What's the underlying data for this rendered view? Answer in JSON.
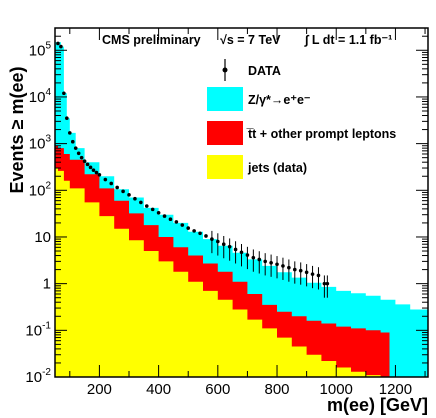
{
  "chart_data": {
    "type": "area",
    "xlabel": "m(ee) [GeV]",
    "ylabel": "Events ≥ m(ee)",
    "xlim": [
      50,
      1310
    ],
    "ylim": [
      0.01,
      300000
    ],
    "y_scale": "log",
    "x_ticks": [
      "200",
      "400",
      "600",
      "800",
      "1000",
      "1200"
    ],
    "y_ticks": [
      {
        "value": 0.01,
        "base": "10",
        "exp": "-2"
      },
      {
        "value": 0.1,
        "base": "10",
        "exp": "-1"
      },
      {
        "value": 1,
        "base": "1",
        "exp": ""
      },
      {
        "value": 10,
        "base": "10",
        "exp": ""
      },
      {
        "value": 100,
        "base": "10",
        "exp": "2"
      },
      {
        "value": 1000,
        "base": "10",
        "exp": "3"
      },
      {
        "value": 10000,
        "base": "10",
        "exp": "4"
      },
      {
        "value": 100000,
        "base": "10",
        "exp": "5"
      }
    ],
    "annotations": {
      "experiment": "CMS preliminary",
      "energy": "√s = 7 TeV",
      "lumi": "∫ L dt = 1.1 fb⁻¹"
    },
    "series": [
      {
        "name": "DATA",
        "style": "points",
        "color": "#000000",
        "x": [
          60,
          70,
          80,
          90,
          100,
          110,
          120,
          130,
          140,
          150,
          160,
          170,
          180,
          190,
          200,
          220,
          240,
          260,
          280,
          300,
          320,
          340,
          360,
          380,
          400,
          420,
          440,
          460,
          480,
          500,
          520,
          540,
          560,
          580,
          600,
          620,
          640,
          660,
          680,
          700,
          720,
          740,
          760,
          780,
          800,
          820,
          840,
          860,
          880,
          900,
          920,
          940,
          960,
          970
        ],
        "y": [
          140000,
          120000,
          12000,
          3500,
          1700,
          1100,
          800,
          620,
          500,
          420,
          360,
          310,
          270,
          240,
          215,
          170,
          140,
          115,
          95,
          80,
          66,
          55,
          46,
          39,
          33,
          28,
          24,
          21,
          18,
          15.5,
          13.5,
          12,
          10.5,
          9,
          8,
          7,
          6.2,
          5.4,
          4.7,
          4.1,
          3.6,
          3.3,
          3.0,
          2.8,
          2.6,
          2.4,
          2.2,
          2.0,
          1.9,
          1.75,
          1.6,
          1.5,
          1.0,
          1.0
        ],
        "y_err_rel": 0.5,
        "err_from_x": 580
      },
      {
        "name": "Z/γ*→e⁺e⁻",
        "style": "stacked-area",
        "color": "#00ffff",
        "x": [
          50,
          60,
          66,
          70,
          80,
          90,
          100,
          120,
          150,
          200,
          250,
          300,
          350,
          400,
          450,
          500,
          550,
          600,
          650,
          700,
          750,
          800,
          850,
          900,
          950,
          1000,
          1050,
          1100,
          1150,
          1200,
          1250,
          1310
        ],
        "y": [
          150000,
          150000,
          150000,
          120000,
          12000,
          3500,
          1700,
          800,
          400,
          200,
          105,
          70,
          42,
          30,
          20,
          13,
          9,
          6.5,
          4.6,
          3.3,
          2.4,
          1.75,
          1.35,
          1.05,
          0.85,
          0.7,
          0.62,
          0.55,
          0.45,
          0.36,
          0.28,
          0.22
        ]
      },
      {
        "name": "t̅t + other prompt leptons",
        "style": "stacked-area",
        "color": "#ff0000",
        "x": [
          50,
          60,
          80,
          100,
          150,
          200,
          250,
          300,
          350,
          400,
          450,
          500,
          550,
          600,
          650,
          700,
          750,
          800,
          850,
          900,
          950,
          1000,
          1050,
          1100,
          1150,
          1180
        ],
        "y": [
          900,
          800,
          600,
          450,
          220,
          110,
          60,
          32,
          18,
          10,
          6,
          4,
          2.7,
          1.8,
          1.1,
          0.6,
          0.35,
          0.25,
          0.2,
          0.16,
          0.14,
          0.12,
          0.11,
          0.1,
          0.09,
          0.085
        ]
      },
      {
        "name": "jets (data)",
        "style": "stacked-area",
        "color": "#ffff00",
        "x": [
          50,
          60,
          80,
          100,
          150,
          200,
          250,
          300,
          350,
          400,
          450,
          500,
          550,
          600,
          650,
          700,
          750,
          800,
          850,
          900,
          950,
          1000,
          1050,
          1100,
          1150,
          1180
        ],
        "y": [
          300,
          260,
          160,
          110,
          55,
          28,
          15,
          8.5,
          5,
          3,
          1.8,
          1.1,
          0.7,
          0.45,
          0.28,
          0.17,
          0.11,
          0.07,
          0.045,
          0.03,
          0.022,
          0.016,
          0.013,
          0.011,
          0.01,
          0.01
        ]
      }
    ],
    "legend": {
      "placement": "top-right",
      "entries": [
        {
          "label": "DATA",
          "swatch": "marker",
          "color": "#000000"
        },
        {
          "label": "Z/γ*→e⁺e⁻",
          "swatch": "box",
          "color": "#00ffff"
        },
        {
          "label": "t̅t + other prompt leptons",
          "swatch": "box",
          "color": "#ff0000"
        },
        {
          "label": "jets (data)",
          "swatch": "box",
          "color": "#ffff00"
        }
      ]
    }
  }
}
